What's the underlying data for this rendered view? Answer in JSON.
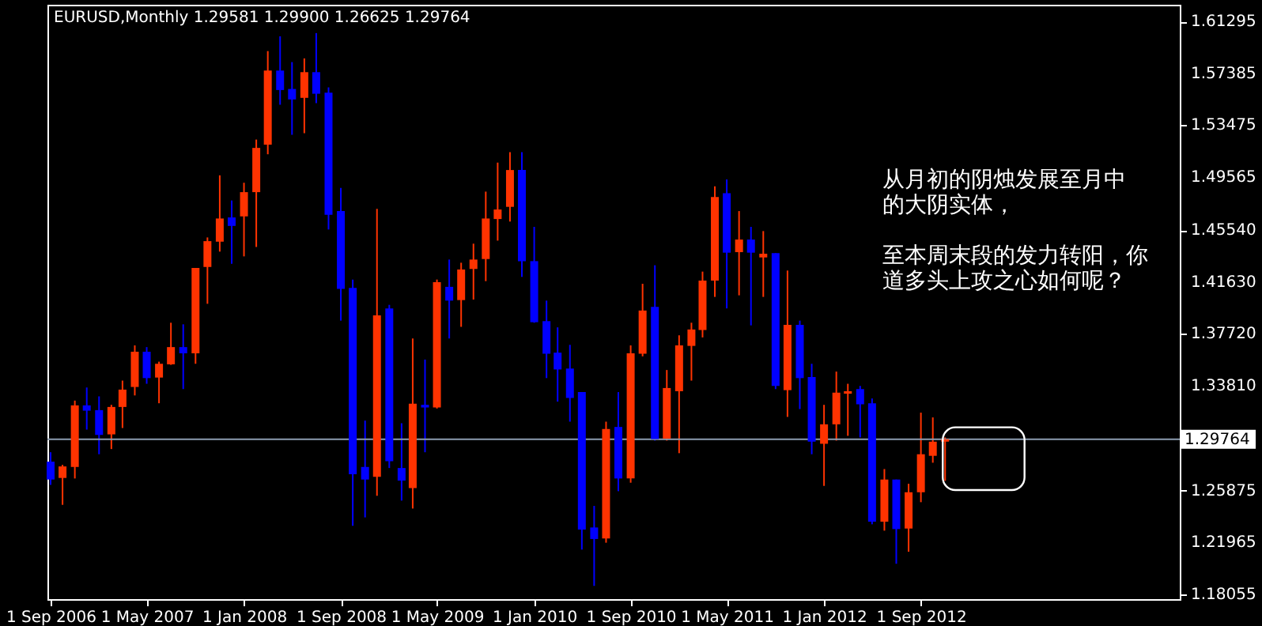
{
  "chart_data": {
    "type": "candlestick",
    "title": "EURUSD,Monthly  1.29581 1.29900 1.26625 1.29764",
    "annotations": [
      "从月初的阴烛发展至月中的大阴实体，",
      "至本周末段的发力转阳，你道多头上攻之心如何呢？"
    ],
    "x": [
      "2006-09",
      "2006-10",
      "2006-11",
      "2006-12",
      "2007-01",
      "2007-02",
      "2007-03",
      "2007-04",
      "2007-05",
      "2007-06",
      "2007-07",
      "2007-08",
      "2007-09",
      "2007-10",
      "2007-11",
      "2007-12",
      "2008-01",
      "2008-02",
      "2008-03",
      "2008-04",
      "2008-05",
      "2008-06",
      "2008-07",
      "2008-08",
      "2008-09",
      "2008-10",
      "2008-11",
      "2008-12",
      "2009-01",
      "2009-02",
      "2009-03",
      "2009-04",
      "2009-05",
      "2009-06",
      "2009-07",
      "2009-08",
      "2009-09",
      "2009-10",
      "2009-11",
      "2009-12",
      "2010-01",
      "2010-02",
      "2010-03",
      "2010-04",
      "2010-05",
      "2010-06",
      "2010-07",
      "2010-08",
      "2010-09",
      "2010-10",
      "2010-11",
      "2010-12",
      "2011-01",
      "2011-02",
      "2011-03",
      "2011-04",
      "2011-05",
      "2011-06",
      "2011-07",
      "2011-08",
      "2011-09",
      "2011-10",
      "2011-11",
      "2011-12",
      "2012-01",
      "2012-02",
      "2012-03",
      "2012-04",
      "2012-05",
      "2012-06",
      "2012-07",
      "2012-08",
      "2012-09",
      "2012-10",
      "2012-11"
    ],
    "ohlc": [
      [
        1.2807,
        1.2878,
        1.2632,
        1.2672
      ],
      [
        1.2684,
        1.2783,
        1.2481,
        1.2771
      ],
      [
        1.2767,
        1.3268,
        1.268,
        1.3232
      ],
      [
        1.3232,
        1.3367,
        1.3049,
        1.3192
      ],
      [
        1.3196,
        1.33,
        1.2863,
        1.3009
      ],
      [
        1.3013,
        1.3236,
        1.2902,
        1.322
      ],
      [
        1.322,
        1.3419,
        1.3061,
        1.3351
      ],
      [
        1.3371,
        1.3685,
        1.3307,
        1.3637
      ],
      [
        1.3637,
        1.3672,
        1.3395,
        1.3438
      ],
      [
        1.3442,
        1.3562,
        1.3248,
        1.3546
      ],
      [
        1.3542,
        1.3856,
        1.3538,
        1.3672
      ],
      [
        1.3672,
        1.3844,
        1.3355,
        1.3625
      ],
      [
        1.3625,
        1.4269,
        1.3546,
        1.4269
      ],
      [
        1.4277,
        1.45,
        1.3999,
        1.4472
      ],
      [
        1.4468,
        1.4969,
        1.4393,
        1.4643
      ],
      [
        1.4651,
        1.4779,
        1.4301,
        1.4587
      ],
      [
        1.4659,
        1.4913,
        1.4357,
        1.4842
      ],
      [
        1.4842,
        1.5239,
        1.4428,
        1.5176
      ],
      [
        1.52,
        1.5907,
        1.5128,
        1.576
      ],
      [
        1.576,
        1.6019,
        1.5502,
        1.5613
      ],
      [
        1.5621,
        1.5824,
        1.5275,
        1.5542
      ],
      [
        1.5554,
        1.5852,
        1.5287,
        1.5748
      ],
      [
        1.5748,
        1.6043,
        1.5514,
        1.5585
      ],
      [
        1.5593,
        1.5633,
        1.456,
        1.4671
      ],
      [
        1.4699,
        1.4874,
        1.3872,
        1.4111
      ],
      [
        1.4119,
        1.4182,
        1.2322,
        1.2712
      ],
      [
        1.2767,
        1.3117,
        1.2386,
        1.2672
      ],
      [
        1.2692,
        1.4715,
        1.2549,
        1.3912
      ],
      [
        1.3964,
        1.3991,
        1.2759,
        1.2811
      ],
      [
        1.2759,
        1.3097,
        1.2513,
        1.2664
      ],
      [
        1.2608,
        1.3737,
        1.2453,
        1.3244
      ],
      [
        1.3236,
        1.3578,
        1.2878,
        1.3216
      ],
      [
        1.3216,
        1.4182,
        1.3208,
        1.4162
      ],
      [
        1.4127,
        1.4333,
        1.3737,
        1.4023
      ],
      [
        1.4027,
        1.4309,
        1.3825,
        1.4258
      ],
      [
        1.4262,
        1.4453,
        1.4031,
        1.4333
      ],
      [
        1.4337,
        1.4846,
        1.417,
        1.4643
      ],
      [
        1.4639,
        1.5065,
        1.4476,
        1.4711
      ],
      [
        1.4731,
        1.5144,
        1.462,
        1.5009
      ],
      [
        1.5009,
        1.5144,
        1.4202,
        1.4321
      ],
      [
        1.4321,
        1.458,
        1.3856,
        1.386
      ],
      [
        1.3868,
        1.4023,
        1.3438,
        1.3622
      ],
      [
        1.363,
        1.3821,
        1.326,
        1.3503
      ],
      [
        1.351,
        1.3689,
        1.3109,
        1.3288
      ],
      [
        1.3332,
        1.3332,
        1.2143,
        1.2294
      ],
      [
        1.231,
        1.2473,
        1.1869,
        1.2223
      ],
      [
        1.2227,
        1.3109,
        1.2195,
        1.3053
      ],
      [
        1.3069,
        1.3332,
        1.2584,
        1.268
      ],
      [
        1.268,
        1.3685,
        1.2648,
        1.3625
      ],
      [
        1.3622,
        1.415,
        1.3602,
        1.3948
      ],
      [
        1.3976,
        1.429,
        1.2966,
        1.2977
      ],
      [
        1.2981,
        1.3499,
        1.2966,
        1.3363
      ],
      [
        1.3339,
        1.3761,
        1.2871,
        1.3685
      ],
      [
        1.3681,
        1.3856,
        1.3419,
        1.3805
      ],
      [
        1.3801,
        1.4242,
        1.3745,
        1.4174
      ],
      [
        1.4174,
        1.4886,
        1.4051,
        1.4806
      ],
      [
        1.4834,
        1.4938,
        1.3964,
        1.4385
      ],
      [
        1.4389,
        1.4699,
        1.4063,
        1.4484
      ],
      [
        1.4484,
        1.458,
        1.3836,
        1.4385
      ],
      [
        1.4349,
        1.4548,
        1.4051,
        1.4377
      ],
      [
        1.4381,
        1.4381,
        1.3355,
        1.3379
      ],
      [
        1.3347,
        1.425,
        1.3145,
        1.384
      ],
      [
        1.384,
        1.3872,
        1.3204,
        1.3438
      ],
      [
        1.3446,
        1.3546,
        1.2863,
        1.2958
      ],
      [
        1.2942,
        1.3236,
        1.2624,
        1.3089
      ],
      [
        1.3089,
        1.3487,
        1.2966,
        1.3328
      ],
      [
        1.332,
        1.3395,
        1.3002,
        1.3339
      ],
      [
        1.3355,
        1.3379,
        1.299,
        1.324
      ],
      [
        1.3248,
        1.3284,
        1.2334,
        1.2354
      ],
      [
        1.2354,
        1.2751,
        1.2286,
        1.2672
      ],
      [
        1.2672,
        1.2672,
        1.2036,
        1.2298
      ],
      [
        1.2302,
        1.264,
        1.2127,
        1.2576
      ],
      [
        1.2576,
        1.3177,
        1.2501,
        1.2863
      ],
      [
        1.2851,
        1.3141,
        1.2799,
        1.2958
      ],
      [
        1.29581,
        1.299,
        1.26625,
        1.29764
      ]
    ],
    "colors": [
      "#0000ff",
      "#ff3300",
      "#ff3300",
      "#0000ff",
      "#0000ff",
      "#ff3300",
      "#ff3300",
      "#ff3300",
      "#0000ff",
      "#ff3300",
      "#ff3300",
      "#0000ff",
      "#ff3300",
      "#ff3300",
      "#ff3300",
      "#0000ff",
      "#ff3300",
      "#ff3300",
      "#ff3300",
      "#0000ff",
      "#0000ff",
      "#ff3300",
      "#0000ff",
      "#0000ff",
      "#0000ff",
      "#0000ff",
      "#0000ff",
      "#ff3300",
      "#0000ff",
      "#0000ff",
      "#ff3300",
      "#0000ff",
      "#ff3300",
      "#0000ff",
      "#ff3300",
      "#ff3300",
      "#ff3300",
      "#ff3300",
      "#ff3300",
      "#0000ff",
      "#0000ff",
      "#0000ff",
      "#0000ff",
      "#0000ff",
      "#0000ff",
      "#0000ff",
      "#ff3300",
      "#0000ff",
      "#ff3300",
      "#ff3300",
      "#0000ff",
      "#ff3300",
      "#ff3300",
      "#ff3300",
      "#ff3300",
      "#ff3300",
      "#0000ff",
      "#ff3300",
      "#0000ff",
      "#ff3300",
      "#0000ff",
      "#ff3300",
      "#0000ff",
      "#0000ff",
      "#ff3300",
      "#ff3300",
      "#ff3300",
      "#0000ff",
      "#0000ff",
      "#ff3300",
      "#0000ff",
      "#ff3300",
      "#ff3300",
      "#ff3300",
      "#ff3300"
    ],
    "ylim": [
      1.1769,
      1.6257
    ],
    "yticks": [
      1.61295,
      1.57385,
      1.53475,
      1.49565,
      {
        "value": 1.4554,
        "label": "1.45540"
      },
      {
        "value": 1.4163,
        "label": "1.41630"
      },
      {
        "value": 1.3772,
        "label": "1.37720"
      },
      {
        "value": 1.3381,
        "label": "1.33810"
      },
      1.25875,
      1.21965,
      1.18055
    ],
    "xlim": [
      "2006-08-24",
      "2014-06-15"
    ],
    "xticks": [
      {
        "value": "2006-09-01",
        "label": "1 Sep 2006"
      },
      {
        "value": "2007-05-01",
        "label": "1 May 2007"
      },
      {
        "value": "2008-01-01",
        "label": "1 Jan 2008"
      },
      {
        "value": "2008-09-01",
        "label": "1 Sep 2008"
      },
      {
        "value": "2009-05-01",
        "label": "1 May 2009"
      },
      {
        "value": "2010-01-01",
        "label": "1 Jan 2010"
      },
      {
        "value": "2010-09-01",
        "label": "1 Sep 2010"
      },
      {
        "value": "2011-05-01",
        "label": "1 May 2011"
      },
      {
        "value": "2012-01-01",
        "label": "1 Jan 2012"
      },
      {
        "value": "2012-09-01",
        "label": "1 Sep 2012"
      }
    ],
    "ref_lines": [
      {
        "axis": "y",
        "value": 1.29764,
        "label": "1.29764",
        "color": "#8c9cb0"
      }
    ],
    "grid": false
  }
}
